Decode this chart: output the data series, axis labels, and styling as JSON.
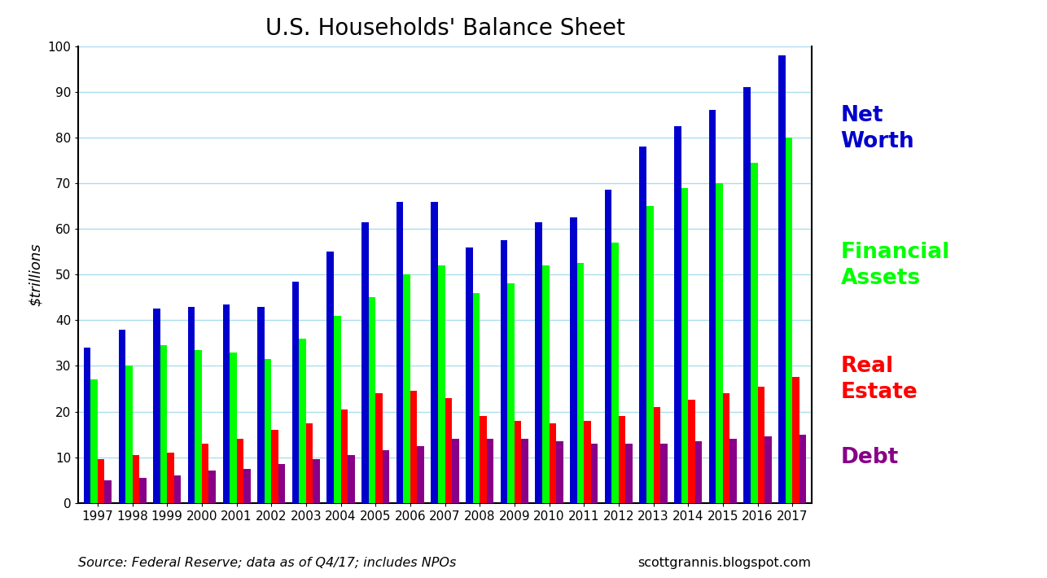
{
  "years": [
    1997,
    1998,
    1999,
    2000,
    2001,
    2002,
    2003,
    2004,
    2005,
    2006,
    2007,
    2008,
    2009,
    2010,
    2011,
    2012,
    2013,
    2014,
    2015,
    2016,
    2017
  ],
  "net_worth": [
    34.0,
    38.0,
    42.5,
    43.0,
    43.5,
    43.0,
    48.5,
    55.0,
    61.5,
    66.0,
    66.0,
    56.0,
    57.5,
    61.5,
    62.5,
    68.5,
    78.0,
    82.5,
    86.0,
    91.0,
    98.0
  ],
  "financial_assets": [
    27.0,
    30.0,
    34.5,
    33.5,
    33.0,
    31.5,
    36.0,
    41.0,
    45.0,
    50.0,
    52.0,
    46.0,
    48.0,
    52.0,
    52.5,
    57.0,
    65.0,
    69.0,
    70.0,
    74.5,
    80.0
  ],
  "real_estate": [
    9.5,
    10.5,
    11.0,
    13.0,
    14.0,
    16.0,
    17.5,
    20.5,
    24.0,
    24.5,
    23.0,
    19.0,
    18.0,
    17.5,
    18.0,
    19.0,
    21.0,
    22.5,
    24.0,
    25.5,
    27.5
  ],
  "debt": [
    5.0,
    5.5,
    6.0,
    7.0,
    7.5,
    8.5,
    9.5,
    10.5,
    11.5,
    12.5,
    14.0,
    14.0,
    14.0,
    13.5,
    13.0,
    13.0,
    13.0,
    13.5,
    14.0,
    14.5,
    15.0
  ],
  "net_worth_color": "#0000CC",
  "financial_assets_color": "#00FF00",
  "real_estate_color": "#FF0000",
  "debt_color": "#880088",
  "title": "U.S. Households' Balance Sheet",
  "ylabel": "$trillions",
  "ylim": [
    0,
    100
  ],
  "yticks": [
    0,
    10,
    20,
    30,
    40,
    50,
    60,
    70,
    80,
    90,
    100
  ],
  "background_color": "#FFFFFF",
  "plot_bg_color": "#FFFFFF",
  "grid_color": "#AADDEE",
  "source_text": "Source: Federal Reserve; data as of Q4/17; includes NPOs",
  "website_text": "scottgrannis.blogspot.com",
  "bar_width": 0.2
}
